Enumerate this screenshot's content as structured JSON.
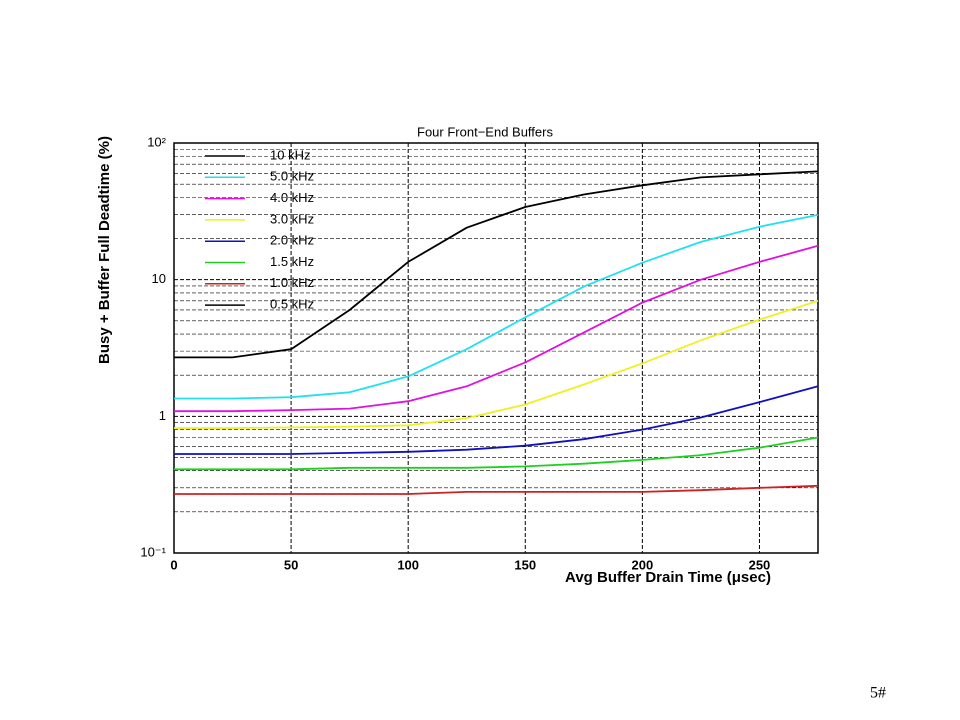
{
  "chart_data": {
    "type": "line",
    "title": "Four Front−End Buffers",
    "xlabel": "Avg Buffer Drain Time (μsec)",
    "ylabel": "Busy + Buffer Full Deadtime (%)",
    "x": [
      0,
      25,
      50,
      75,
      100,
      125,
      150,
      175,
      200,
      225,
      250,
      275
    ],
    "series": [
      {
        "name": "10 kHz",
        "color": "#000000",
        "values": [
          2.7,
          2.7,
          3.1,
          6.0,
          13.5,
          24,
          34,
          42,
          49,
          56,
          59,
          62
        ]
      },
      {
        "name": "5.0 kHz",
        "color": "#22e0f0",
        "values": [
          1.35,
          1.35,
          1.38,
          1.5,
          1.96,
          3.1,
          5.3,
          8.9,
          13.3,
          18.9,
          24.4,
          29.8
        ]
      },
      {
        "name": "4.0 kHz",
        "color": "#e010e0",
        "values": [
          1.09,
          1.09,
          1.11,
          1.14,
          1.29,
          1.66,
          2.48,
          4.1,
          6.8,
          10,
          13.5,
          17.7
        ]
      },
      {
        "name": "3.0 kHz",
        "color": "#f0f020",
        "values": [
          0.82,
          0.82,
          0.83,
          0.84,
          0.86,
          0.97,
          1.22,
          1.71,
          2.44,
          3.6,
          5.1,
          7.0
        ]
      },
      {
        "name": "2.0 kHz",
        "color": "#1010c0",
        "values": [
          0.53,
          0.53,
          0.53,
          0.54,
          0.55,
          0.57,
          0.61,
          0.68,
          0.8,
          0.98,
          1.27,
          1.66
        ]
      },
      {
        "name": "1.5 kHz",
        "color": "#20d020",
        "values": [
          0.41,
          0.41,
          0.41,
          0.42,
          0.42,
          0.42,
          0.43,
          0.45,
          0.48,
          0.52,
          0.59,
          0.7
        ]
      },
      {
        "name": "1.0 kHz",
        "color": "#d02020",
        "values": [
          0.27,
          0.27,
          0.27,
          0.27,
          0.27,
          0.28,
          0.28,
          0.28,
          0.28,
          0.288,
          0.3,
          0.31
        ]
      },
      {
        "name": "0.5 kHz",
        "color": "#000000",
        "values": [
          null,
          null,
          null,
          null,
          null,
          null,
          null,
          null,
          null,
          null,
          null,
          null
        ]
      }
    ],
    "xlim": [
      0,
      275
    ],
    "xticks": [
      0,
      50,
      100,
      150,
      200,
      250
    ],
    "ylim": [
      0.1,
      100
    ],
    "log_y": true,
    "yticks": [
      {
        "value": 0.1,
        "label": "10⁻¹"
      },
      1,
      10,
      {
        "value": 100,
        "label": "10²"
      }
    ],
    "yminor": [
      0.2,
      0.3,
      0.4,
      0.5,
      0.6,
      0.7,
      0.8,
      0.9,
      2,
      3,
      4,
      5,
      6,
      7,
      8,
      9,
      20,
      30,
      40,
      50,
      60,
      70,
      80,
      90
    ],
    "grid": true,
    "legend": "upper left"
  },
  "footer": {
    "page": "5#"
  }
}
